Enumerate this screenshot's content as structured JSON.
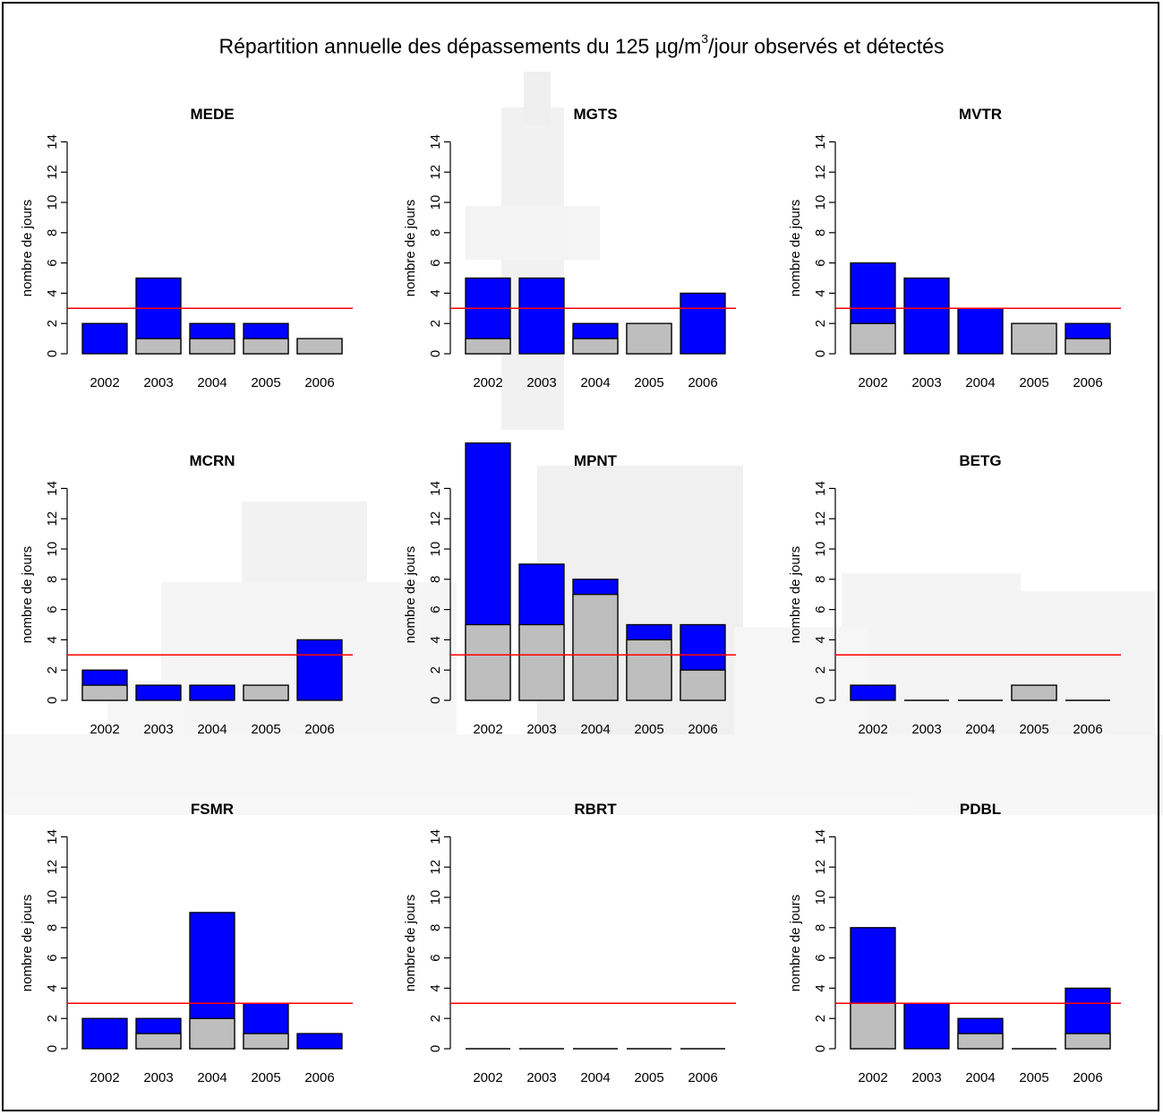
{
  "title": {
    "before_sup": "Répartition annuelle des dépassements du 125 µg/m",
    "sup": "3",
    "after_sup": "/jour observés et détectés"
  },
  "colors": {
    "detected": "#0000ff",
    "observed": "#bebebe",
    "threshold_line": "#ff0000",
    "bar_outline": "#000000"
  },
  "chart_data": [
    {
      "type": "bar",
      "title": "MEDE",
      "ylabel": "nombre de jours",
      "categories": [
        "2002",
        "2003",
        "2004",
        "2005",
        "2006"
      ],
      "yticks": [
        0,
        2,
        4,
        6,
        8,
        10,
        12,
        14
      ],
      "ylim": [
        0,
        14
      ],
      "total": [
        2,
        5,
        2,
        2,
        1
      ],
      "grey": [
        0,
        1,
        1,
        1,
        1
      ],
      "threshold": 3
    },
    {
      "type": "bar",
      "title": "MGTS",
      "ylabel": "nombre de jours",
      "categories": [
        "2002",
        "2003",
        "2004",
        "2005",
        "2006"
      ],
      "yticks": [
        0,
        2,
        4,
        6,
        8,
        10,
        12,
        14
      ],
      "ylim": [
        0,
        14
      ],
      "total": [
        5,
        5,
        2,
        2,
        4
      ],
      "grey": [
        1,
        0,
        1,
        2,
        0
      ],
      "threshold": 3
    },
    {
      "type": "bar",
      "title": "MVTR",
      "ylabel": "nombre de jours",
      "categories": [
        "2002",
        "2003",
        "2004",
        "2005",
        "2006"
      ],
      "yticks": [
        0,
        2,
        4,
        6,
        8,
        10,
        12,
        14
      ],
      "ylim": [
        0,
        14
      ],
      "total": [
        6,
        5,
        3,
        2,
        2
      ],
      "grey": [
        2,
        0,
        0,
        2,
        1
      ],
      "threshold": 3
    },
    {
      "type": "bar",
      "title": "MCRN",
      "ylabel": "nombre de jours",
      "categories": [
        "2002",
        "2003",
        "2004",
        "2005",
        "2006"
      ],
      "yticks": [
        0,
        2,
        4,
        6,
        8,
        10,
        12,
        14
      ],
      "ylim": [
        0,
        14
      ],
      "total": [
        2,
        1,
        1,
        1,
        4
      ],
      "grey": [
        1,
        0,
        0,
        1,
        0
      ],
      "threshold": 3
    },
    {
      "type": "bar",
      "title": "MPNT",
      "ylabel": "nombre de jours",
      "categories": [
        "2002",
        "2003",
        "2004",
        "2005",
        "2006"
      ],
      "yticks": [
        0,
        2,
        4,
        6,
        8,
        10,
        12,
        14
      ],
      "ylim": [
        0,
        14
      ],
      "total": [
        17,
        9,
        8,
        5,
        5
      ],
      "grey": [
        5,
        5,
        7,
        4,
        2
      ],
      "threshold": 3
    },
    {
      "type": "bar",
      "title": "BETG",
      "ylabel": "nombre de jours",
      "categories": [
        "2002",
        "2003",
        "2004",
        "2005",
        "2006"
      ],
      "yticks": [
        0,
        2,
        4,
        6,
        8,
        10,
        12,
        14
      ],
      "ylim": [
        0,
        14
      ],
      "total": [
        1,
        0,
        0,
        1,
        0
      ],
      "grey": [
        0,
        0,
        0,
        1,
        0
      ],
      "threshold": 3
    },
    {
      "type": "bar",
      "title": "FSMR",
      "ylabel": "nombre de jours",
      "categories": [
        "2002",
        "2003",
        "2004",
        "2005",
        "2006"
      ],
      "yticks": [
        0,
        2,
        4,
        6,
        8,
        10,
        12,
        14
      ],
      "ylim": [
        0,
        14
      ],
      "total": [
        2,
        2,
        9,
        3,
        1
      ],
      "grey": [
        0,
        1,
        2,
        1,
        0
      ],
      "threshold": 3
    },
    {
      "type": "bar",
      "title": "RBRT",
      "ylabel": "nombre de jours",
      "categories": [
        "2002",
        "2003",
        "2004",
        "2005",
        "2006"
      ],
      "yticks": [
        0,
        2,
        4,
        6,
        8,
        10,
        12,
        14
      ],
      "ylim": [
        0,
        14
      ],
      "total": [
        0,
        0,
        0,
        0,
        0
      ],
      "grey": [
        0,
        0,
        0,
        0,
        0
      ],
      "threshold": 3
    },
    {
      "type": "bar",
      "title": "PDBL",
      "ylabel": "nombre de jours",
      "categories": [
        "2002",
        "2003",
        "2004",
        "2005",
        "2006"
      ],
      "yticks": [
        0,
        2,
        4,
        6,
        8,
        10,
        12,
        14
      ],
      "ylim": [
        0,
        14
      ],
      "total": [
        8,
        3,
        2,
        0,
        4
      ],
      "grey": [
        3,
        0,
        1,
        0,
        1
      ],
      "threshold": 3
    }
  ]
}
